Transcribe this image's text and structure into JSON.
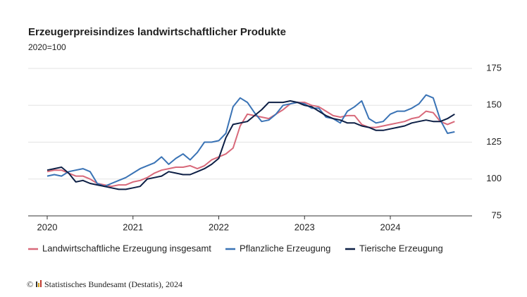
{
  "chart_data": {
    "type": "line",
    "title": "Erzeugerpreisindizes landwirtschaftlicher Produkte",
    "subtitle": "2020=100",
    "categories": [
      "2020",
      null,
      null,
      null,
      null,
      null,
      null,
      null,
      null,
      null,
      null,
      null,
      "2021",
      null,
      null,
      null,
      null,
      null,
      null,
      null,
      null,
      null,
      null,
      null,
      "2022",
      null,
      null,
      null,
      null,
      null,
      null,
      null,
      null,
      null,
      null,
      null,
      "2023",
      null,
      null,
      null,
      null,
      null,
      null,
      null,
      null,
      null,
      null,
      null,
      "2024",
      null,
      null,
      null,
      null,
      null,
      null,
      null,
      null,
      null
    ],
    "series": [
      {
        "name": "Landwirtschaftliche Erzeugung insgesamt",
        "color": "#d8697a",
        "values": [
          105,
          106,
          106,
          104,
          102,
          102,
          100,
          97,
          96,
          95,
          96,
          96,
          98,
          99,
          101,
          104,
          106,
          107,
          108,
          108,
          109,
          107,
          109,
          113,
          115,
          117,
          121,
          136,
          144,
          143,
          142,
          141,
          144,
          147,
          151,
          152,
          152,
          150,
          149,
          146,
          143,
          142,
          143,
          143,
          137,
          135,
          135,
          136,
          137,
          138,
          139,
          141,
          142,
          146,
          145,
          139,
          137,
          139
        ]
      },
      {
        "name": "Pflanzliche Erzeugung",
        "color": "#3a73b5",
        "values": [
          102,
          103,
          102,
          105,
          106,
          107,
          105,
          97,
          95,
          97,
          99,
          101,
          104,
          107,
          109,
          111,
          115,
          110,
          114,
          117,
          113,
          118,
          125,
          125,
          126,
          131,
          149,
          155,
          152,
          145,
          139,
          140,
          144,
          150,
          151,
          152,
          151,
          148,
          148,
          142,
          141,
          138,
          146,
          149,
          153,
          141,
          138,
          139,
          144,
          146,
          146,
          148,
          151,
          157,
          155,
          140,
          131,
          132
        ]
      },
      {
        "name": "Tierische Erzeugung",
        "color": "#0d1f45",
        "values": [
          106,
          107,
          108,
          104,
          98,
          99,
          97,
          96,
          95,
          94,
          93,
          93,
          94,
          95,
          100,
          101,
          102,
          105,
          104,
          103,
          103,
          105,
          107,
          110,
          114,
          128,
          137,
          138,
          139,
          143,
          147,
          152,
          152,
          152,
          153,
          152,
          150,
          149,
          146,
          143,
          141,
          140,
          138,
          138,
          136,
          135,
          133,
          133,
          134,
          135,
          136,
          138,
          139,
          140,
          139,
          139,
          141,
          144
        ]
      }
    ],
    "ylim": [
      75,
      175
    ],
    "yticks": [
      75,
      100,
      125,
      150,
      175
    ],
    "grid": true,
    "legend": "bottom",
    "copyright": "©",
    "source": "Statistisches Bundesamt (Destatis), 2024"
  }
}
